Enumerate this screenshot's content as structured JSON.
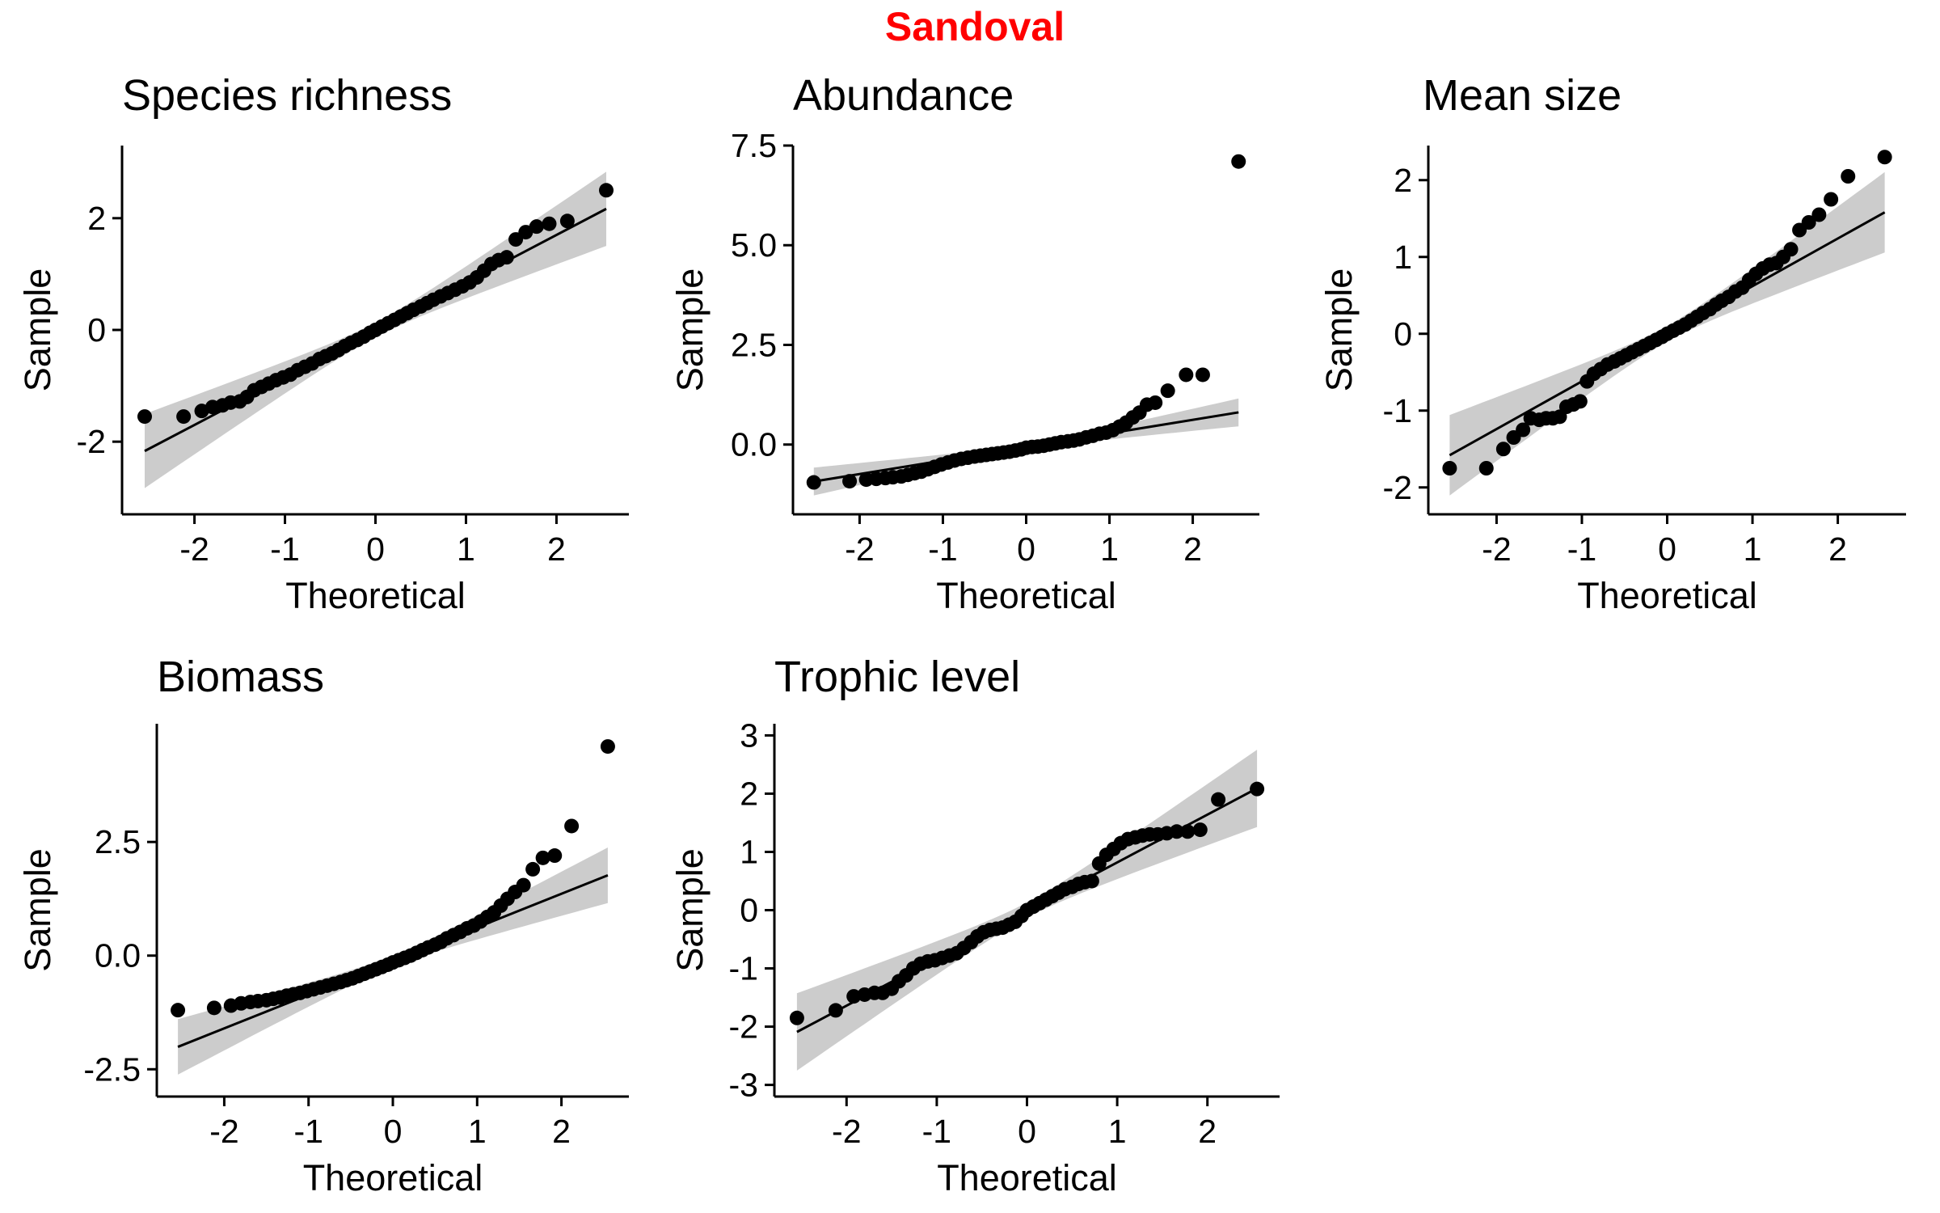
{
  "figure": {
    "title": "Sandoval",
    "title_color": "#ff0000",
    "point_color": "#000000",
    "line_color": "#000000",
    "band_color": "#cccccc"
  },
  "chart_data": [
    {
      "type": "scatter",
      "title": "Species richness",
      "xlabel": "Theoretical",
      "ylabel": "Sample",
      "xlim": [
        -2.8,
        2.8
      ],
      "ylim": [
        -3.3,
        3.3
      ],
      "xticks": [
        -2,
        -1,
        0,
        1,
        2
      ],
      "xtick_labels": [
        "-2",
        "-1",
        "0",
        "1",
        "2"
      ],
      "yticks": [
        -2,
        0,
        2
      ],
      "ytick_labels": [
        "-2",
        "0",
        "2"
      ],
      "line": {
        "slope": 0.85,
        "intercept": 0.0
      },
      "band_scale": 0.38,
      "points": [
        [
          -2.55,
          -1.55
        ],
        [
          -2.12,
          -1.55
        ],
        [
          -1.92,
          -1.45
        ],
        [
          -1.8,
          -1.38
        ],
        [
          -1.69,
          -1.35
        ],
        [
          -1.6,
          -1.3
        ],
        [
          -1.5,
          -1.28
        ],
        [
          -1.42,
          -1.2
        ],
        [
          -1.34,
          -1.08
        ],
        [
          -1.26,
          -1.02
        ],
        [
          -1.18,
          -0.96
        ],
        [
          -1.1,
          -0.9
        ],
        [
          -1.02,
          -0.85
        ],
        [
          -0.94,
          -0.8
        ],
        [
          -0.86,
          -0.72
        ],
        [
          -0.78,
          -0.66
        ],
        [
          -0.7,
          -0.6
        ],
        [
          -0.62,
          -0.52
        ],
        [
          -0.55,
          -0.47
        ],
        [
          -0.48,
          -0.42
        ],
        [
          -0.41,
          -0.36
        ],
        [
          -0.34,
          -0.29
        ],
        [
          -0.27,
          -0.23
        ],
        [
          -0.2,
          -0.18
        ],
        [
          -0.13,
          -0.12
        ],
        [
          -0.06,
          -0.05
        ],
        [
          0.0,
          0.0
        ],
        [
          0.07,
          0.06
        ],
        [
          0.14,
          0.12
        ],
        [
          0.21,
          0.18
        ],
        [
          0.28,
          0.24
        ],
        [
          0.35,
          0.3
        ],
        [
          0.42,
          0.36
        ],
        [
          0.5,
          0.42
        ],
        [
          0.57,
          0.48
        ],
        [
          0.64,
          0.54
        ],
        [
          0.72,
          0.6
        ],
        [
          0.8,
          0.66
        ],
        [
          0.88,
          0.72
        ],
        [
          0.96,
          0.78
        ],
        [
          1.04,
          0.85
        ],
        [
          1.12,
          0.94
        ],
        [
          1.2,
          1.06
        ],
        [
          1.28,
          1.18
        ],
        [
          1.36,
          1.25
        ],
        [
          1.45,
          1.3
        ],
        [
          1.55,
          1.62
        ],
        [
          1.66,
          1.75
        ],
        [
          1.78,
          1.85
        ],
        [
          1.92,
          1.9
        ],
        [
          2.12,
          1.95
        ],
        [
          2.55,
          2.5
        ]
      ]
    },
    {
      "type": "scatter",
      "title": "Abundance",
      "xlabel": "Theoretical",
      "ylabel": "Sample",
      "xlim": [
        -2.8,
        2.8
      ],
      "ylim": [
        -1.75,
        7.5
      ],
      "xticks": [
        -2,
        -1,
        0,
        1,
        2
      ],
      "xtick_labels": [
        "-2",
        "-1",
        "0",
        "1",
        "2"
      ],
      "yticks": [
        0,
        2.5,
        5,
        7.5
      ],
      "ytick_labels": [
        "0.0",
        "2.5",
        "5.0",
        "7.5"
      ],
      "line": {
        "slope": 0.34,
        "intercept": -0.06
      },
      "band_scale": 0.2,
      "points": [
        [
          -2.55,
          -0.95
        ],
        [
          -2.12,
          -0.92
        ],
        [
          -1.92,
          -0.88
        ],
        [
          -1.8,
          -0.86
        ],
        [
          -1.69,
          -0.84
        ],
        [
          -1.6,
          -0.82
        ],
        [
          -1.5,
          -0.8
        ],
        [
          -1.42,
          -0.76
        ],
        [
          -1.34,
          -0.72
        ],
        [
          -1.26,
          -0.68
        ],
        [
          -1.18,
          -0.62
        ],
        [
          -1.1,
          -0.56
        ],
        [
          -1.02,
          -0.5
        ],
        [
          -0.94,
          -0.45
        ],
        [
          -0.86,
          -0.4
        ],
        [
          -0.78,
          -0.36
        ],
        [
          -0.7,
          -0.33
        ],
        [
          -0.62,
          -0.3
        ],
        [
          -0.55,
          -0.28
        ],
        [
          -0.48,
          -0.26
        ],
        [
          -0.41,
          -0.24
        ],
        [
          -0.34,
          -0.22
        ],
        [
          -0.27,
          -0.2
        ],
        [
          -0.2,
          -0.18
        ],
        [
          -0.13,
          -0.15
        ],
        [
          -0.06,
          -0.12
        ],
        [
          0.0,
          -0.08
        ],
        [
          0.07,
          -0.06
        ],
        [
          0.14,
          -0.05
        ],
        [
          0.21,
          -0.03
        ],
        [
          0.28,
          0.0
        ],
        [
          0.35,
          0.03
        ],
        [
          0.42,
          0.06
        ],
        [
          0.5,
          0.08
        ],
        [
          0.57,
          0.1
        ],
        [
          0.64,
          0.13
        ],
        [
          0.72,
          0.18
        ],
        [
          0.8,
          0.22
        ],
        [
          0.88,
          0.27
        ],
        [
          0.96,
          0.3
        ],
        [
          1.04,
          0.36
        ],
        [
          1.12,
          0.45
        ],
        [
          1.2,
          0.55
        ],
        [
          1.28,
          0.68
        ],
        [
          1.36,
          0.8
        ],
        [
          1.45,
          1.0
        ],
        [
          1.55,
          1.05
        ],
        [
          1.7,
          1.35
        ],
        [
          1.92,
          1.75
        ],
        [
          2.12,
          1.75
        ],
        [
          2.55,
          7.1
        ]
      ]
    },
    {
      "type": "scatter",
      "title": "Mean size",
      "xlabel": "Theoretical",
      "ylabel": "Sample",
      "xlim": [
        -2.8,
        2.8
      ],
      "ylim": [
        -2.35,
        2.45
      ],
      "xticks": [
        -2,
        -1,
        0,
        1,
        2
      ],
      "xtick_labels": [
        "-2",
        "-1",
        "0",
        "1",
        "2"
      ],
      "yticks": [
        -2,
        -1,
        0,
        1,
        2
      ],
      "ytick_labels": [
        "-2",
        "-1",
        "0",
        "1",
        "2"
      ],
      "line": {
        "slope": 0.62,
        "intercept": 0.0
      },
      "band_scale": 0.3,
      "points": [
        [
          -2.55,
          -1.75
        ],
        [
          -2.12,
          -1.75
        ],
        [
          -1.92,
          -1.5
        ],
        [
          -1.8,
          -1.35
        ],
        [
          -1.69,
          -1.25
        ],
        [
          -1.6,
          -1.1
        ],
        [
          -1.5,
          -1.12
        ],
        [
          -1.42,
          -1.1
        ],
        [
          -1.34,
          -1.1
        ],
        [
          -1.26,
          -1.08
        ],
        [
          -1.18,
          -0.95
        ],
        [
          -1.1,
          -0.92
        ],
        [
          -1.02,
          -0.88
        ],
        [
          -0.94,
          -0.62
        ],
        [
          -0.86,
          -0.52
        ],
        [
          -0.78,
          -0.46
        ],
        [
          -0.7,
          -0.4
        ],
        [
          -0.62,
          -0.36
        ],
        [
          -0.55,
          -0.32
        ],
        [
          -0.48,
          -0.28
        ],
        [
          -0.41,
          -0.24
        ],
        [
          -0.34,
          -0.2
        ],
        [
          -0.27,
          -0.16
        ],
        [
          -0.2,
          -0.12
        ],
        [
          -0.13,
          -0.08
        ],
        [
          -0.06,
          -0.04
        ],
        [
          0.0,
          0.0
        ],
        [
          0.07,
          0.04
        ],
        [
          0.14,
          0.08
        ],
        [
          0.21,
          0.12
        ],
        [
          0.28,
          0.17
        ],
        [
          0.35,
          0.22
        ],
        [
          0.42,
          0.27
        ],
        [
          0.5,
          0.32
        ],
        [
          0.57,
          0.38
        ],
        [
          0.64,
          0.43
        ],
        [
          0.72,
          0.48
        ],
        [
          0.8,
          0.55
        ],
        [
          0.88,
          0.6
        ],
        [
          0.96,
          0.7
        ],
        [
          1.04,
          0.78
        ],
        [
          1.12,
          0.85
        ],
        [
          1.2,
          0.9
        ],
        [
          1.28,
          0.92
        ],
        [
          1.36,
          1.0
        ],
        [
          1.45,
          1.1
        ],
        [
          1.55,
          1.35
        ],
        [
          1.66,
          1.45
        ],
        [
          1.78,
          1.55
        ],
        [
          1.92,
          1.75
        ],
        [
          2.12,
          2.05
        ],
        [
          2.55,
          2.3
        ]
      ]
    },
    {
      "type": "scatter",
      "title": "Biomass",
      "xlabel": "Theoretical",
      "ylabel": "Sample",
      "xlim": [
        -2.8,
        2.8
      ],
      "ylim": [
        -3.1,
        5.1
      ],
      "xticks": [
        -2,
        -1,
        0,
        1,
        2
      ],
      "xtick_labels": [
        "-2",
        "-1",
        "0",
        "1",
        "2"
      ],
      "yticks": [
        -2.5,
        0,
        2.5
      ],
      "ytick_labels": [
        "-2.5",
        "0.0",
        "2.5"
      ],
      "line": {
        "slope": 0.74,
        "intercept": -0.12
      },
      "band_scale": 0.35,
      "points": [
        [
          -2.55,
          -1.2
        ],
        [
          -2.12,
          -1.15
        ],
        [
          -1.92,
          -1.1
        ],
        [
          -1.8,
          -1.05
        ],
        [
          -1.69,
          -1.02
        ],
        [
          -1.6,
          -1.0
        ],
        [
          -1.5,
          -0.98
        ],
        [
          -1.42,
          -0.95
        ],
        [
          -1.34,
          -0.92
        ],
        [
          -1.26,
          -0.88
        ],
        [
          -1.18,
          -0.85
        ],
        [
          -1.1,
          -0.82
        ],
        [
          -1.02,
          -0.78
        ],
        [
          -0.94,
          -0.74
        ],
        [
          -0.86,
          -0.7
        ],
        [
          -0.78,
          -0.66
        ],
        [
          -0.7,
          -0.62
        ],
        [
          -0.62,
          -0.58
        ],
        [
          -0.55,
          -0.54
        ],
        [
          -0.48,
          -0.5
        ],
        [
          -0.41,
          -0.45
        ],
        [
          -0.34,
          -0.4
        ],
        [
          -0.27,
          -0.35
        ],
        [
          -0.2,
          -0.3
        ],
        [
          -0.13,
          -0.25
        ],
        [
          -0.06,
          -0.2
        ],
        [
          0.0,
          -0.15
        ],
        [
          0.07,
          -0.1
        ],
        [
          0.14,
          -0.05
        ],
        [
          0.21,
          0.0
        ],
        [
          0.28,
          0.06
        ],
        [
          0.35,
          0.12
        ],
        [
          0.42,
          0.18
        ],
        [
          0.5,
          0.24
        ],
        [
          0.57,
          0.3
        ],
        [
          0.64,
          0.38
        ],
        [
          0.72,
          0.45
        ],
        [
          0.8,
          0.52
        ],
        [
          0.88,
          0.6
        ],
        [
          0.96,
          0.66
        ],
        [
          1.04,
          0.75
        ],
        [
          1.12,
          0.85
        ],
        [
          1.2,
          0.95
        ],
        [
          1.28,
          1.1
        ],
        [
          1.36,
          1.25
        ],
        [
          1.45,
          1.4
        ],
        [
          1.55,
          1.55
        ],
        [
          1.66,
          1.9
        ],
        [
          1.78,
          2.15
        ],
        [
          1.92,
          2.2
        ],
        [
          2.12,
          2.85
        ],
        [
          2.55,
          4.6
        ]
      ]
    },
    {
      "type": "scatter",
      "title": "Trophic level",
      "xlabel": "Theoretical",
      "ylabel": "Sample",
      "xlim": [
        -2.8,
        2.8
      ],
      "ylim": [
        -3.2,
        3.2
      ],
      "xticks": [
        -2,
        -1,
        0,
        1,
        2
      ],
      "xtick_labels": [
        "-2",
        "-1",
        "0",
        "1",
        "2"
      ],
      "yticks": [
        -3,
        -2,
        -1,
        0,
        1,
        2,
        3
      ],
      "ytick_labels": [
        "-3",
        "-2",
        "-1",
        "0",
        "1",
        "2",
        "3"
      ],
      "line": {
        "slope": 0.82,
        "intercept": 0.0
      },
      "band_scale": 0.38,
      "points": [
        [
          -2.55,
          -1.85
        ],
        [
          -2.12,
          -1.72
        ],
        [
          -1.92,
          -1.48
        ],
        [
          -1.8,
          -1.45
        ],
        [
          -1.69,
          -1.42
        ],
        [
          -1.6,
          -1.42
        ],
        [
          -1.5,
          -1.35
        ],
        [
          -1.42,
          -1.22
        ],
        [
          -1.34,
          -1.12
        ],
        [
          -1.26,
          -1.0
        ],
        [
          -1.18,
          -0.92
        ],
        [
          -1.1,
          -0.88
        ],
        [
          -1.02,
          -0.86
        ],
        [
          -0.94,
          -0.82
        ],
        [
          -0.86,
          -0.78
        ],
        [
          -0.78,
          -0.74
        ],
        [
          -0.7,
          -0.65
        ],
        [
          -0.62,
          -0.55
        ],
        [
          -0.55,
          -0.45
        ],
        [
          -0.48,
          -0.38
        ],
        [
          -0.41,
          -0.34
        ],
        [
          -0.34,
          -0.32
        ],
        [
          -0.27,
          -0.3
        ],
        [
          -0.2,
          -0.25
        ],
        [
          -0.13,
          -0.2
        ],
        [
          -0.06,
          -0.1
        ],
        [
          0.0,
          0.0
        ],
        [
          0.07,
          0.06
        ],
        [
          0.14,
          0.12
        ],
        [
          0.21,
          0.18
        ],
        [
          0.28,
          0.24
        ],
        [
          0.35,
          0.3
        ],
        [
          0.42,
          0.36
        ],
        [
          0.5,
          0.4
        ],
        [
          0.57,
          0.45
        ],
        [
          0.64,
          0.48
        ],
        [
          0.72,
          0.5
        ],
        [
          0.8,
          0.8
        ],
        [
          0.88,
          0.95
        ],
        [
          0.96,
          1.05
        ],
        [
          1.04,
          1.15
        ],
        [
          1.12,
          1.22
        ],
        [
          1.2,
          1.25
        ],
        [
          1.28,
          1.28
        ],
        [
          1.36,
          1.3
        ],
        [
          1.45,
          1.3
        ],
        [
          1.55,
          1.32
        ],
        [
          1.66,
          1.35
        ],
        [
          1.78,
          1.35
        ],
        [
          1.92,
          1.38
        ],
        [
          2.12,
          1.9
        ],
        [
          2.55,
          2.08
        ]
      ]
    }
  ]
}
